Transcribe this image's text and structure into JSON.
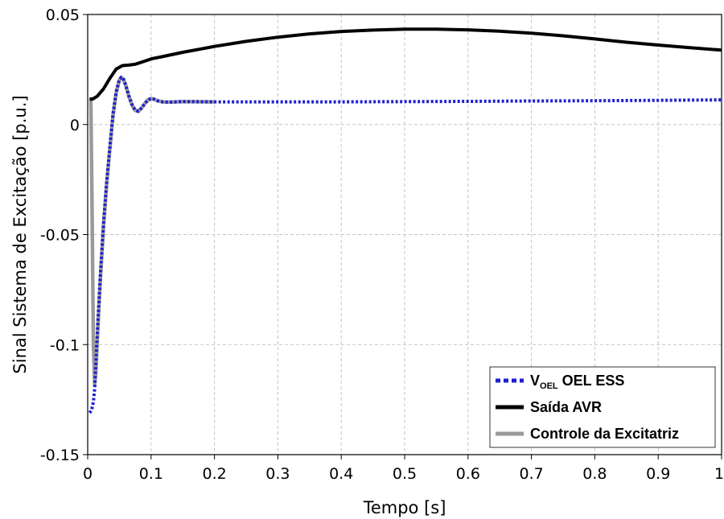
{
  "chart_data": {
    "type": "line",
    "title": "",
    "xlabel": "Tempo [s]",
    "ylabel": "Sinal Sistema de Excitação [p.u.]",
    "xlim": [
      0,
      1
    ],
    "ylim": [
      -0.15,
      0.05
    ],
    "x_ticks": [
      0,
      0.1,
      0.2,
      0.3,
      0.4,
      0.5,
      0.6,
      0.7,
      0.8,
      0.9,
      1
    ],
    "x_tick_labels": [
      "0",
      "0.1",
      "0.2",
      "0.3",
      "0.4",
      "0.5",
      "0.6",
      "0.7",
      "0.8",
      "0.9",
      "1"
    ],
    "y_ticks": [
      -0.15,
      -0.1,
      -0.05,
      0,
      0.05
    ],
    "y_tick_labels": [
      "-0.15",
      "-0.1",
      "-0.05",
      "0",
      "0.05"
    ],
    "grid": true,
    "legend_position": "bottom-right",
    "legend": {
      "voel_main": "V",
      "voel_sub": "OEL",
      "voel_rest": " OEL ESS"
    },
    "series": [
      {
        "name": "V OEL OEL ESS",
        "color": "#1f1fd0",
        "style": "dotted",
        "x": [
          0.003,
          0.006,
          0.009,
          0.011,
          0.013,
          0.016,
          0.02,
          0.025,
          0.03,
          0.035,
          0.04,
          0.045,
          0.05,
          0.053,
          0.056,
          0.06,
          0.065,
          0.07,
          0.075,
          0.08,
          0.085,
          0.09,
          0.095,
          0.1,
          0.105,
          0.11,
          0.12,
          0.13,
          0.15,
          0.2,
          0.3,
          0.4,
          0.5,
          0.6,
          0.7,
          0.8,
          0.9,
          1.0
        ],
        "y": [
          -0.131,
          -0.13,
          -0.126,
          -0.12,
          -0.108,
          -0.09,
          -0.068,
          -0.045,
          -0.026,
          -0.01,
          0.005,
          0.015,
          0.0205,
          0.0215,
          0.021,
          0.018,
          0.013,
          0.009,
          0.0065,
          0.006,
          0.0075,
          0.0095,
          0.0112,
          0.0118,
          0.0115,
          0.0108,
          0.0102,
          0.0102,
          0.0104,
          0.0103,
          0.0103,
          0.0103,
          0.0104,
          0.0105,
          0.0107,
          0.0108,
          0.011,
          0.0112
        ]
      },
      {
        "name": "Saída AVR",
        "color": "#000000",
        "style": "solid",
        "x": [
          0.003,
          0.008,
          0.015,
          0.025,
          0.035,
          0.045,
          0.055,
          0.065,
          0.075,
          0.09,
          0.1,
          0.12,
          0.15,
          0.2,
          0.25,
          0.3,
          0.35,
          0.4,
          0.45,
          0.5,
          0.55,
          0.6,
          0.65,
          0.7,
          0.75,
          0.8,
          0.85,
          0.9,
          0.95,
          1.0
        ],
        "y": [
          0.0115,
          0.0116,
          0.0128,
          0.0162,
          0.021,
          0.0252,
          0.0268,
          0.027,
          0.0274,
          0.0288,
          0.0298,
          0.031,
          0.0328,
          0.0355,
          0.0378,
          0.0397,
          0.0412,
          0.0423,
          0.0429,
          0.0433,
          0.0433,
          0.043,
          0.0424,
          0.0415,
          0.0403,
          0.0389,
          0.0374,
          0.0361,
          0.0349,
          0.0338
        ]
      },
      {
        "name": "Controle da Excitatriz",
        "color": "#9a9a9a",
        "style": "solid",
        "x": [
          0.003,
          0.005,
          0.007,
          0.009,
          0.011,
          0.013,
          0.016,
          0.02,
          0.025,
          0.03,
          0.035,
          0.04,
          0.045,
          0.05,
          0.053,
          0.056,
          0.06,
          0.065,
          0.07,
          0.075,
          0.08,
          0.085,
          0.09,
          0.095,
          0.1,
          0.105,
          0.11,
          0.12,
          0.13,
          0.15,
          0.2
        ],
        "y": [
          0.0115,
          0.0115,
          -0.04,
          -0.1,
          -0.118,
          -0.112,
          -0.093,
          -0.07,
          -0.046,
          -0.027,
          -0.011,
          0.004,
          0.0145,
          0.0203,
          0.0213,
          0.0208,
          0.0178,
          0.0128,
          0.0088,
          0.0064,
          0.006,
          0.0075,
          0.0095,
          0.0112,
          0.0118,
          0.0115,
          0.0108,
          0.0102,
          0.0102,
          0.0104,
          0.0103
        ]
      }
    ]
  }
}
